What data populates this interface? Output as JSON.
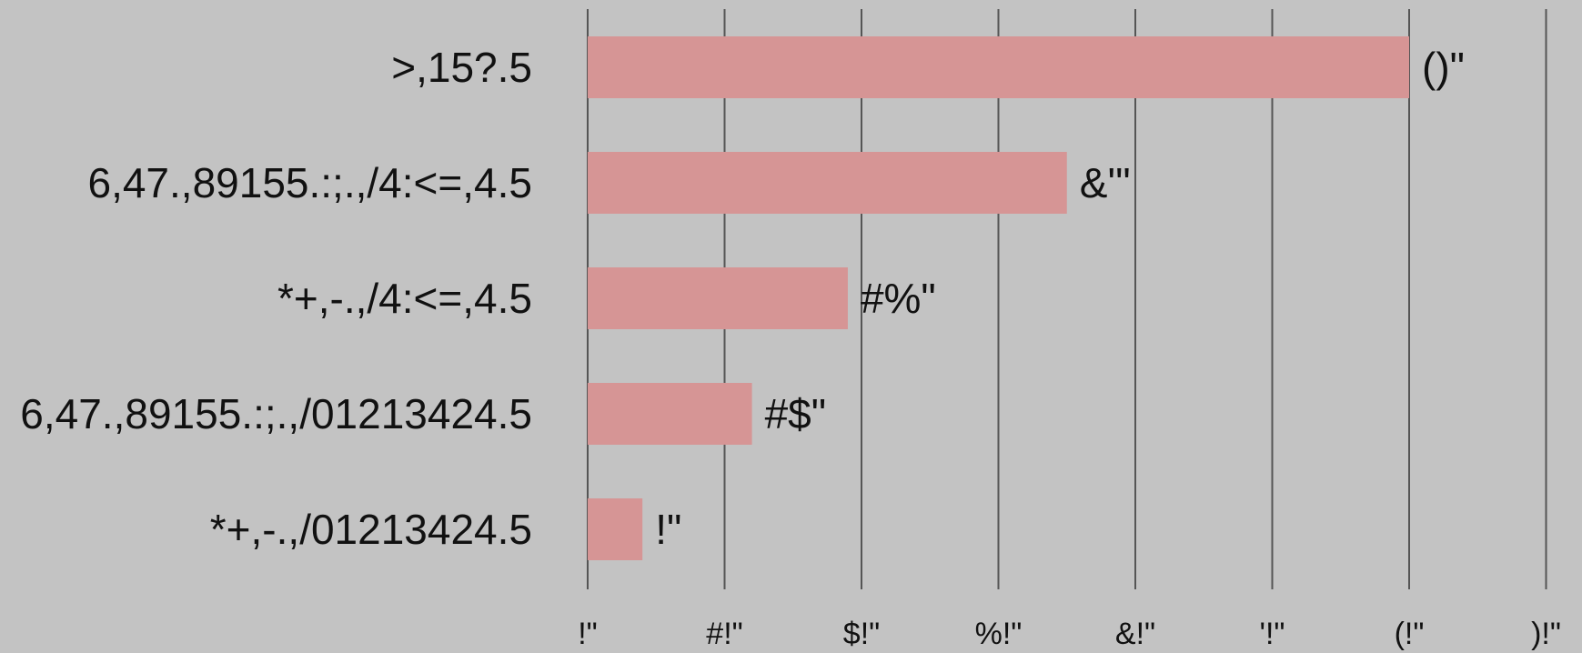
{
  "chart_data": {
    "type": "bar",
    "orientation": "horizontal",
    "categories": [
      ">,15?.5",
      "6,47.,89155.:;.,/4:<=,4.5",
      "*+,-.,/4:<=,4.5",
      "6,47.,89155.:;.,/01213424.5",
      "*+,-.,/01213424.5"
    ],
    "values": [
      60,
      35,
      19,
      12,
      4
    ],
    "value_labels": [
      "()\"",
      "&'\"",
      "#%\"",
      "#$\"",
      "!\""
    ],
    "x_ticks": [
      "!\"",
      "#!\"",
      "$!\"",
      "%!\"",
      "&!\"",
      "'!\"",
      "(!\"",
      ")!\""
    ],
    "xlim": [
      0,
      70
    ],
    "grid": true,
    "title": "",
    "xlabel": "",
    "ylabel": "",
    "colors": {
      "bar": "#d69595",
      "background": "#c3c3c3",
      "grid": "#555555",
      "text": "#111111"
    }
  }
}
